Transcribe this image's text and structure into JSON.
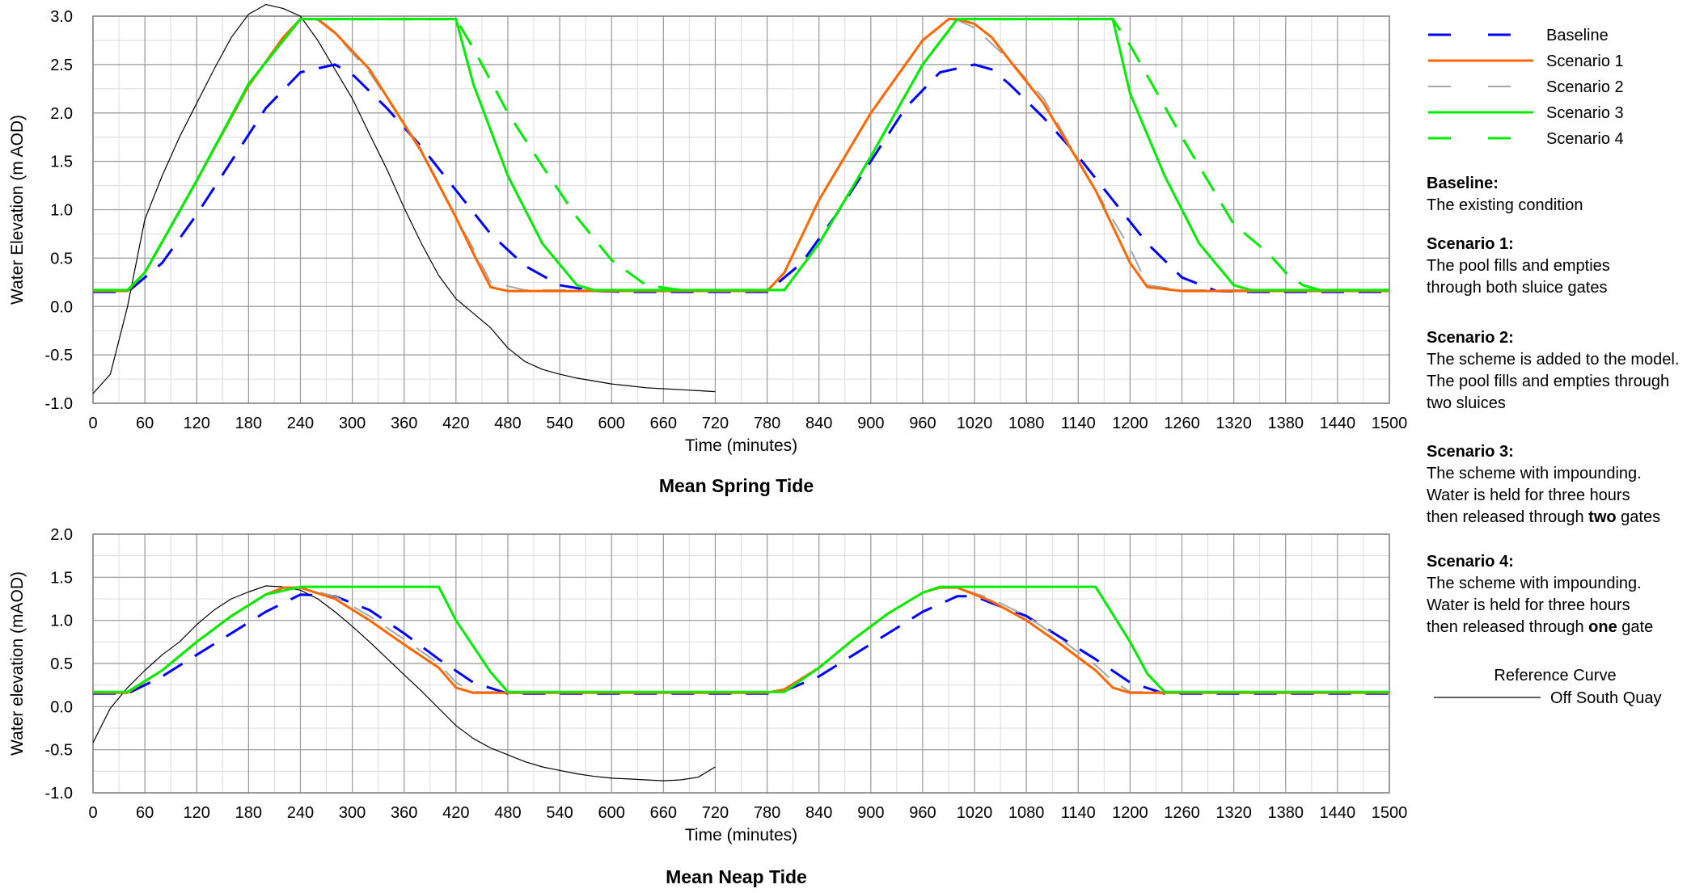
{
  "colors": {
    "baseline": "#0000ff",
    "scenario1": "#ff6600",
    "scenario2": "#a6a6a6",
    "scenario3": "#00ee00",
    "scenario4": "#00ee00",
    "reference": "#000000",
    "grid_major": "#9a9a9a",
    "grid_minor": "#dcdcdc"
  },
  "legend": {
    "series": [
      {
        "key": "baseline",
        "label": "Baseline",
        "dash": "dashed"
      },
      {
        "key": "scenario1",
        "label": "Scenario 1",
        "dash": "solid"
      },
      {
        "key": "scenario2",
        "label": "Scenario 2",
        "dash": "dashed"
      },
      {
        "key": "scenario3",
        "label": "Scenario 3",
        "dash": "solid"
      },
      {
        "key": "scenario4",
        "label": "Scenario 4",
        "dash": "dashed"
      }
    ],
    "notes": [
      {
        "heading": "Baseline:",
        "lines": [
          [
            "The existing condition"
          ]
        ]
      },
      {
        "heading": "Scenario 1:",
        "lines": [
          [
            "The pool fills and empties"
          ],
          [
            "through both sluice gates"
          ]
        ]
      },
      {
        "heading": "Scenario 2:",
        "lines": [
          [
            "The scheme is added to the model."
          ],
          [
            "The pool fills and empties through"
          ],
          [
            "two sluices"
          ]
        ]
      },
      {
        "heading": "Scenario 3:",
        "lines": [
          [
            "The scheme with impounding."
          ],
          [
            "Water is held for three hours"
          ],
          [
            "then released through ",
            "two",
            " gates"
          ]
        ]
      },
      {
        "heading": "Scenario 4:",
        "lines": [
          [
            "The scheme with impounding."
          ],
          [
            "Water is held for three hours"
          ],
          [
            "then released through ",
            "one",
            " gate"
          ]
        ]
      }
    ],
    "reference_title": "Reference Curve",
    "reference_label": "Off South Quay"
  },
  "chart_data": [
    {
      "type": "line",
      "title": "Mean Spring Tide",
      "xlabel": "Time (minutes)",
      "ylabel": "Water Elevation (m AOD)",
      "xlim": [
        0,
        1500
      ],
      "ylim": [
        -1.0,
        3.0
      ],
      "x_ticks": [
        0,
        60,
        120,
        180,
        240,
        300,
        360,
        420,
        480,
        540,
        600,
        660,
        720,
        780,
        840,
        900,
        960,
        1020,
        1080,
        1140,
        1200,
        1260,
        1320,
        1380,
        1440,
        1500
      ],
      "y_ticks": [
        "3.0",
        "2.5",
        "2.0",
        "1.5",
        "1.0",
        "0.5",
        "0.0",
        "-0.5",
        "-1.0"
      ],
      "y_tick_values": [
        3.0,
        2.5,
        2.0,
        1.5,
        1.0,
        0.5,
        0.0,
        -0.5,
        -1.0
      ],
      "series": [
        {
          "key": "reference",
          "width": 1.2,
          "dash": "solid",
          "x": [
            0,
            20,
            40,
            60,
            80,
            100,
            120,
            140,
            160,
            180,
            200,
            220,
            240,
            260,
            280,
            300,
            320,
            340,
            360,
            380,
            400,
            420,
            440,
            460,
            480,
            500,
            520,
            540,
            560,
            580,
            600,
            620,
            640,
            660,
            680,
            700,
            720
          ],
          "y": [
            -0.9,
            -0.7,
            0.0,
            0.9,
            1.35,
            1.75,
            2.1,
            2.45,
            2.78,
            3.02,
            3.12,
            3.08,
            3.0,
            2.75,
            2.45,
            2.15,
            1.78,
            1.42,
            1.02,
            0.65,
            0.32,
            0.08,
            -0.07,
            -0.22,
            -0.43,
            -0.57,
            -0.65,
            -0.7,
            -0.74,
            -0.77,
            -0.8,
            -0.82,
            -0.84,
            -0.85,
            -0.86,
            -0.87,
            -0.88
          ]
        },
        {
          "key": "baseline",
          "width": 3,
          "dash": "dashed",
          "x": [
            0,
            40,
            80,
            120,
            160,
            200,
            240,
            280,
            300,
            340,
            380,
            420,
            460,
            500,
            540,
            580,
            620,
            660,
            720,
            780,
            820,
            860,
            900,
            940,
            980,
            1020,
            1040,
            1060,
            1100,
            1140,
            1180,
            1220,
            1260,
            1300,
            1340,
            1500
          ],
          "y": [
            0.15,
            0.15,
            0.45,
            0.95,
            1.5,
            2.05,
            2.42,
            2.5,
            2.4,
            2.05,
            1.65,
            1.2,
            0.75,
            0.42,
            0.22,
            0.16,
            0.15,
            0.15,
            0.15,
            0.15,
            0.45,
            0.95,
            1.5,
            2.05,
            2.42,
            2.5,
            2.45,
            2.3,
            1.95,
            1.55,
            1.1,
            0.65,
            0.3,
            0.16,
            0.15,
            0.15
          ]
        },
        {
          "key": "scenario2",
          "width": 2,
          "dash": "dashed",
          "x": [
            0,
            40,
            60,
            120,
            180,
            220,
            240,
            260,
            280,
            320,
            380,
            420,
            440,
            460,
            500,
            780,
            800,
            840,
            900,
            960,
            990,
            1000,
            1020,
            1060,
            1100,
            1160,
            1200,
            1220,
            1260,
            1500
          ],
          "y": [
            0.17,
            0.17,
            0.35,
            1.3,
            2.28,
            2.78,
            2.96,
            2.96,
            2.82,
            2.42,
            1.62,
            0.92,
            0.6,
            0.25,
            0.17,
            0.17,
            0.35,
            1.1,
            2.0,
            2.75,
            2.96,
            2.96,
            2.88,
            2.55,
            2.15,
            1.2,
            0.6,
            0.22,
            0.17,
            0.17
          ]
        },
        {
          "key": "scenario1",
          "width": 3,
          "dash": "solid",
          "x": [
            0,
            40,
            60,
            120,
            180,
            220,
            240,
            260,
            280,
            320,
            380,
            420,
            440,
            460,
            480,
            500,
            780,
            800,
            840,
            900,
            960,
            990,
            1000,
            1020,
            1040,
            1060,
            1100,
            1160,
            1200,
            1220,
            1260,
            1500
          ],
          "y": [
            0.16,
            0.16,
            0.35,
            1.3,
            2.28,
            2.78,
            2.97,
            2.97,
            2.83,
            2.45,
            1.6,
            0.92,
            0.55,
            0.2,
            0.16,
            0.16,
            0.16,
            0.35,
            1.1,
            2.0,
            2.75,
            2.97,
            2.97,
            2.92,
            2.78,
            2.55,
            2.1,
            1.2,
            0.45,
            0.2,
            0.16,
            0.16
          ]
        },
        {
          "key": "scenario4",
          "width": 3,
          "dash": "dashed",
          "x": [
            0,
            40,
            60,
            120,
            180,
            240,
            420,
            440,
            480,
            520,
            560,
            600,
            640,
            680,
            800,
            840,
            900,
            960,
            1000,
            1180,
            1200,
            1260,
            1320,
            1360,
            1380,
            1400,
            1420,
            1500
          ],
          "y": [
            0.17,
            0.17,
            0.35,
            1.3,
            2.3,
            2.97,
            2.97,
            2.67,
            2.0,
            1.45,
            0.92,
            0.48,
            0.22,
            0.17,
            0.17,
            0.65,
            1.55,
            2.5,
            2.97,
            2.97,
            2.7,
            1.75,
            0.85,
            0.55,
            0.35,
            0.22,
            0.17,
            0.17
          ]
        },
        {
          "key": "scenario3",
          "width": 3,
          "dash": "solid",
          "x": [
            0,
            40,
            60,
            120,
            180,
            240,
            420,
            440,
            480,
            520,
            560,
            580,
            800,
            840,
            900,
            960,
            1000,
            1180,
            1200,
            1240,
            1280,
            1320,
            1340,
            1500
          ],
          "y": [
            0.17,
            0.17,
            0.35,
            1.3,
            2.3,
            2.97,
            2.97,
            2.3,
            1.35,
            0.65,
            0.22,
            0.17,
            0.17,
            0.65,
            1.55,
            2.5,
            2.97,
            2.97,
            2.2,
            1.35,
            0.65,
            0.22,
            0.17,
            0.17
          ]
        }
      ]
    },
    {
      "type": "line",
      "title": "Mean Neap Tide",
      "xlabel": "Time (minutes)",
      "ylabel": "Water elevation (mAOD)",
      "xlim": [
        0,
        1500
      ],
      "ylim": [
        -1.0,
        2.0
      ],
      "x_ticks": [
        0,
        60,
        120,
        180,
        240,
        300,
        360,
        420,
        480,
        540,
        600,
        660,
        720,
        780,
        840,
        900,
        960,
        1020,
        1080,
        1140,
        1200,
        1260,
        1320,
        1380,
        1440,
        1500
      ],
      "y_ticks": [
        "2.0",
        "1.5",
        "1.0",
        "0.5",
        "0.0",
        "-0.5",
        "-1.0"
      ],
      "y_tick_values": [
        2.0,
        1.5,
        1.0,
        0.5,
        0.0,
        -0.5,
        -1.0
      ],
      "series": [
        {
          "key": "reference",
          "width": 1.2,
          "dash": "solid",
          "x": [
            0,
            20,
            40,
            60,
            80,
            100,
            120,
            140,
            160,
            180,
            200,
            220,
            240,
            260,
            280,
            300,
            320,
            340,
            360,
            380,
            400,
            420,
            440,
            460,
            480,
            500,
            520,
            540,
            560,
            580,
            600,
            620,
            640,
            660,
            680,
            700,
            720
          ],
          "y": [
            -0.42,
            -0.02,
            0.22,
            0.42,
            0.6,
            0.75,
            0.95,
            1.12,
            1.25,
            1.33,
            1.4,
            1.39,
            1.35,
            1.25,
            1.1,
            0.93,
            0.75,
            0.56,
            0.37,
            0.18,
            -0.02,
            -0.22,
            -0.37,
            -0.48,
            -0.56,
            -0.64,
            -0.7,
            -0.74,
            -0.78,
            -0.81,
            -0.83,
            -0.84,
            -0.85,
            -0.86,
            -0.85,
            -0.82,
            -0.7
          ]
        },
        {
          "key": "baseline",
          "width": 3,
          "dash": "dashed",
          "x": [
            0,
            40,
            80,
            120,
            160,
            200,
            240,
            280,
            320,
            360,
            400,
            440,
            480,
            520,
            780,
            800,
            840,
            880,
            920,
            960,
            1000,
            1020,
            1040,
            1080,
            1120,
            1160,
            1200,
            1240,
            1500
          ],
          "y": [
            0.15,
            0.15,
            0.35,
            0.6,
            0.85,
            1.1,
            1.3,
            1.28,
            1.12,
            0.85,
            0.55,
            0.28,
            0.15,
            0.15,
            0.15,
            0.18,
            0.35,
            0.6,
            0.85,
            1.1,
            1.28,
            1.28,
            1.2,
            1.05,
            0.8,
            0.55,
            0.28,
            0.15,
            0.15
          ]
        },
        {
          "key": "scenario2",
          "width": 2,
          "dash": "dashed",
          "x": [
            0,
            40,
            80,
            120,
            160,
            200,
            220,
            240,
            280,
            320,
            360,
            400,
            420,
            440,
            780,
            800,
            840,
            880,
            920,
            960,
            980,
            1000,
            1040,
            1080,
            1120,
            1160,
            1180,
            1200,
            1500
          ],
          "y": [
            0.17,
            0.17,
            0.42,
            0.75,
            1.05,
            1.3,
            1.38,
            1.38,
            1.28,
            1.05,
            0.78,
            0.5,
            0.28,
            0.17,
            0.17,
            0.2,
            0.45,
            0.78,
            1.08,
            1.32,
            1.38,
            1.38,
            1.25,
            1.05,
            0.78,
            0.48,
            0.3,
            0.17,
            0.17
          ]
        },
        {
          "key": "scenario1",
          "width": 3,
          "dash": "solid",
          "x": [
            0,
            40,
            80,
            120,
            160,
            200,
            220,
            240,
            280,
            320,
            360,
            400,
            420,
            440,
            780,
            800,
            840,
            880,
            920,
            960,
            980,
            1000,
            1040,
            1080,
            1120,
            1160,
            1180,
            1200,
            1500
          ],
          "y": [
            0.16,
            0.16,
            0.42,
            0.75,
            1.05,
            1.3,
            1.38,
            1.38,
            1.25,
            1.0,
            0.72,
            0.45,
            0.22,
            0.16,
            0.16,
            0.2,
            0.45,
            0.78,
            1.08,
            1.32,
            1.38,
            1.38,
            1.22,
            1.0,
            0.72,
            0.42,
            0.22,
            0.16,
            0.16
          ]
        },
        {
          "key": "scenario3",
          "width": 3,
          "dash": "solid",
          "x": [
            0,
            40,
            80,
            120,
            160,
            200,
            240,
            400,
            420,
            460,
            480,
            800,
            840,
            880,
            920,
            960,
            980,
            1160,
            1200,
            1220,
            1240,
            1500
          ],
          "y": [
            0.17,
            0.17,
            0.42,
            0.75,
            1.05,
            1.3,
            1.39,
            1.39,
            1.0,
            0.4,
            0.17,
            0.17,
            0.45,
            0.78,
            1.08,
            1.32,
            1.39,
            1.39,
            0.75,
            0.38,
            0.17,
            0.17
          ]
        }
      ]
    }
  ]
}
